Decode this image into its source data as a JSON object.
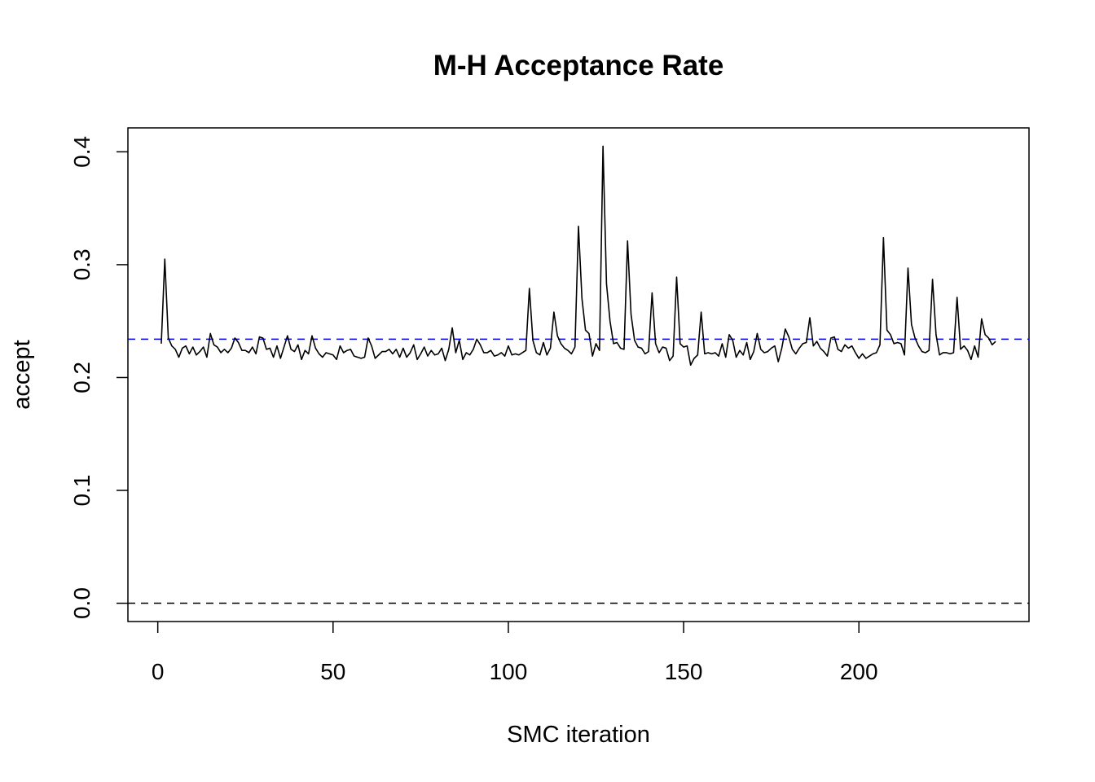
{
  "chart_data": {
    "type": "line",
    "title": "M-H Acceptance Rate",
    "xlabel": "SMC iteration",
    "ylabel": "accept",
    "color": "#000000",
    "x": [
      1,
      2,
      3,
      4,
      5,
      6,
      7,
      8,
      9,
      10,
      11,
      12,
      13,
      14,
      15,
      16,
      17,
      18,
      19,
      20,
      21,
      22,
      23,
      24,
      25,
      26,
      27,
      28,
      29,
      30,
      31,
      32,
      33,
      34,
      35,
      36,
      37,
      38,
      39,
      40,
      41,
      42,
      43,
      44,
      45,
      46,
      47,
      48,
      49,
      50,
      51,
      52,
      53,
      54,
      55,
      56,
      57,
      58,
      59,
      60,
      61,
      62,
      63,
      64,
      65,
      66,
      67,
      68,
      69,
      70,
      71,
      72,
      73,
      74,
      75,
      76,
      77,
      78,
      79,
      80,
      81,
      82,
      83,
      84,
      85,
      86,
      87,
      88,
      89,
      90,
      91,
      92,
      93,
      94,
      95,
      96,
      97,
      98,
      99,
      100,
      101,
      102,
      103,
      104,
      105,
      106,
      107,
      108,
      109,
      110,
      111,
      112,
      113,
      114,
      115,
      116,
      117,
      118,
      119,
      120,
      121,
      122,
      123,
      124,
      125,
      126,
      127,
      128,
      129,
      130,
      131,
      132,
      133,
      134,
      135,
      136,
      137,
      138,
      139,
      140,
      141,
      142,
      143,
      144,
      145,
      146,
      147,
      148,
      149,
      150,
      151,
      152,
      153,
      154,
      155,
      156,
      157,
      158,
      159,
      160,
      161,
      162,
      163,
      164,
      165,
      166,
      167,
      168,
      169,
      170,
      171,
      172,
      173,
      174,
      175,
      176,
      177,
      178,
      179,
      180,
      181,
      182,
      183,
      184,
      185,
      186,
      187,
      188,
      189,
      190,
      191,
      192,
      193,
      194,
      195,
      196,
      197,
      198,
      199,
      200,
      201,
      202,
      203,
      204,
      205,
      206,
      207,
      208,
      209,
      210,
      211,
      212,
      213,
      214,
      215,
      216,
      217,
      218,
      219,
      220,
      221,
      222,
      223,
      224,
      225,
      226,
      227,
      228,
      229,
      230,
      231,
      232,
      233,
      234,
      235,
      236,
      237,
      238,
      239
    ],
    "values": [
      0.23,
      0.305,
      0.235,
      0.228,
      0.225,
      0.218,
      0.226,
      0.228,
      0.221,
      0.227,
      0.22,
      0.223,
      0.227,
      0.218,
      0.239,
      0.229,
      0.227,
      0.222,
      0.225,
      0.222,
      0.226,
      0.235,
      0.231,
      0.224,
      0.224,
      0.222,
      0.227,
      0.221,
      0.236,
      0.235,
      0.225,
      0.226,
      0.218,
      0.228,
      0.217,
      0.227,
      0.237,
      0.225,
      0.223,
      0.229,
      0.216,
      0.224,
      0.221,
      0.237,
      0.226,
      0.221,
      0.218,
      0.222,
      0.221,
      0.22,
      0.216,
      0.228,
      0.222,
      0.224,
      0.225,
      0.219,
      0.218,
      0.217,
      0.218,
      0.235,
      0.228,
      0.217,
      0.22,
      0.223,
      0.223,
      0.225,
      0.221,
      0.225,
      0.218,
      0.226,
      0.218,
      0.222,
      0.229,
      0.216,
      0.221,
      0.227,
      0.219,
      0.224,
      0.22,
      0.221,
      0.226,
      0.215,
      0.225,
      0.244,
      0.222,
      0.233,
      0.216,
      0.222,
      0.22,
      0.225,
      0.234,
      0.229,
      0.222,
      0.222,
      0.224,
      0.219,
      0.22,
      0.222,
      0.219,
      0.228,
      0.22,
      0.221,
      0.22,
      0.222,
      0.224,
      0.279,
      0.233,
      0.222,
      0.22,
      0.231,
      0.22,
      0.226,
      0.258,
      0.237,
      0.23,
      0.226,
      0.224,
      0.221,
      0.227,
      0.334,
      0.27,
      0.242,
      0.239,
      0.219,
      0.23,
      0.224,
      0.405,
      0.283,
      0.25,
      0.23,
      0.231,
      0.226,
      0.225,
      0.321,
      0.256,
      0.233,
      0.227,
      0.226,
      0.221,
      0.223,
      0.275,
      0.23,
      0.222,
      0.227,
      0.226,
      0.215,
      0.219,
      0.289,
      0.23,
      0.227,
      0.228,
      0.211,
      0.217,
      0.22,
      0.258,
      0.221,
      0.222,
      0.221,
      0.222,
      0.219,
      0.23,
      0.218,
      0.238,
      0.233,
      0.218,
      0.224,
      0.22,
      0.231,
      0.216,
      0.223,
      0.239,
      0.225,
      0.222,
      0.223,
      0.226,
      0.228,
      0.214,
      0.226,
      0.243,
      0.236,
      0.225,
      0.221,
      0.226,
      0.23,
      0.231,
      0.253,
      0.228,
      0.232,
      0.226,
      0.223,
      0.219,
      0.235,
      0.236,
      0.225,
      0.223,
      0.229,
      0.226,
      0.228,
      0.222,
      0.217,
      0.221,
      0.217,
      0.219,
      0.221,
      0.222,
      0.229,
      0.324,
      0.242,
      0.238,
      0.23,
      0.231,
      0.23,
      0.22,
      0.297,
      0.247,
      0.235,
      0.228,
      0.223,
      0.222,
      0.224,
      0.287,
      0.238,
      0.22,
      0.222,
      0.222,
      0.221,
      0.222,
      0.271,
      0.225,
      0.228,
      0.224,
      0.216,
      0.228,
      0.218,
      0.252,
      0.238,
      0.235,
      0.229,
      0.232
    ],
    "hlines": [
      {
        "value": 0.234,
        "color": "#0000ff"
      },
      {
        "value": 0,
        "color": "#000000"
      }
    ],
    "xlim": [
      -8.52,
      248.52
    ],
    "ylim": [
      -0.0162,
      0.4212
    ],
    "xticks": [
      0,
      50,
      100,
      150,
      200
    ],
    "yticks": [
      {
        "value": 0,
        "label": "0.0"
      },
      0.1,
      0.2,
      0.3,
      0.4
    ],
    "grid": false
  }
}
